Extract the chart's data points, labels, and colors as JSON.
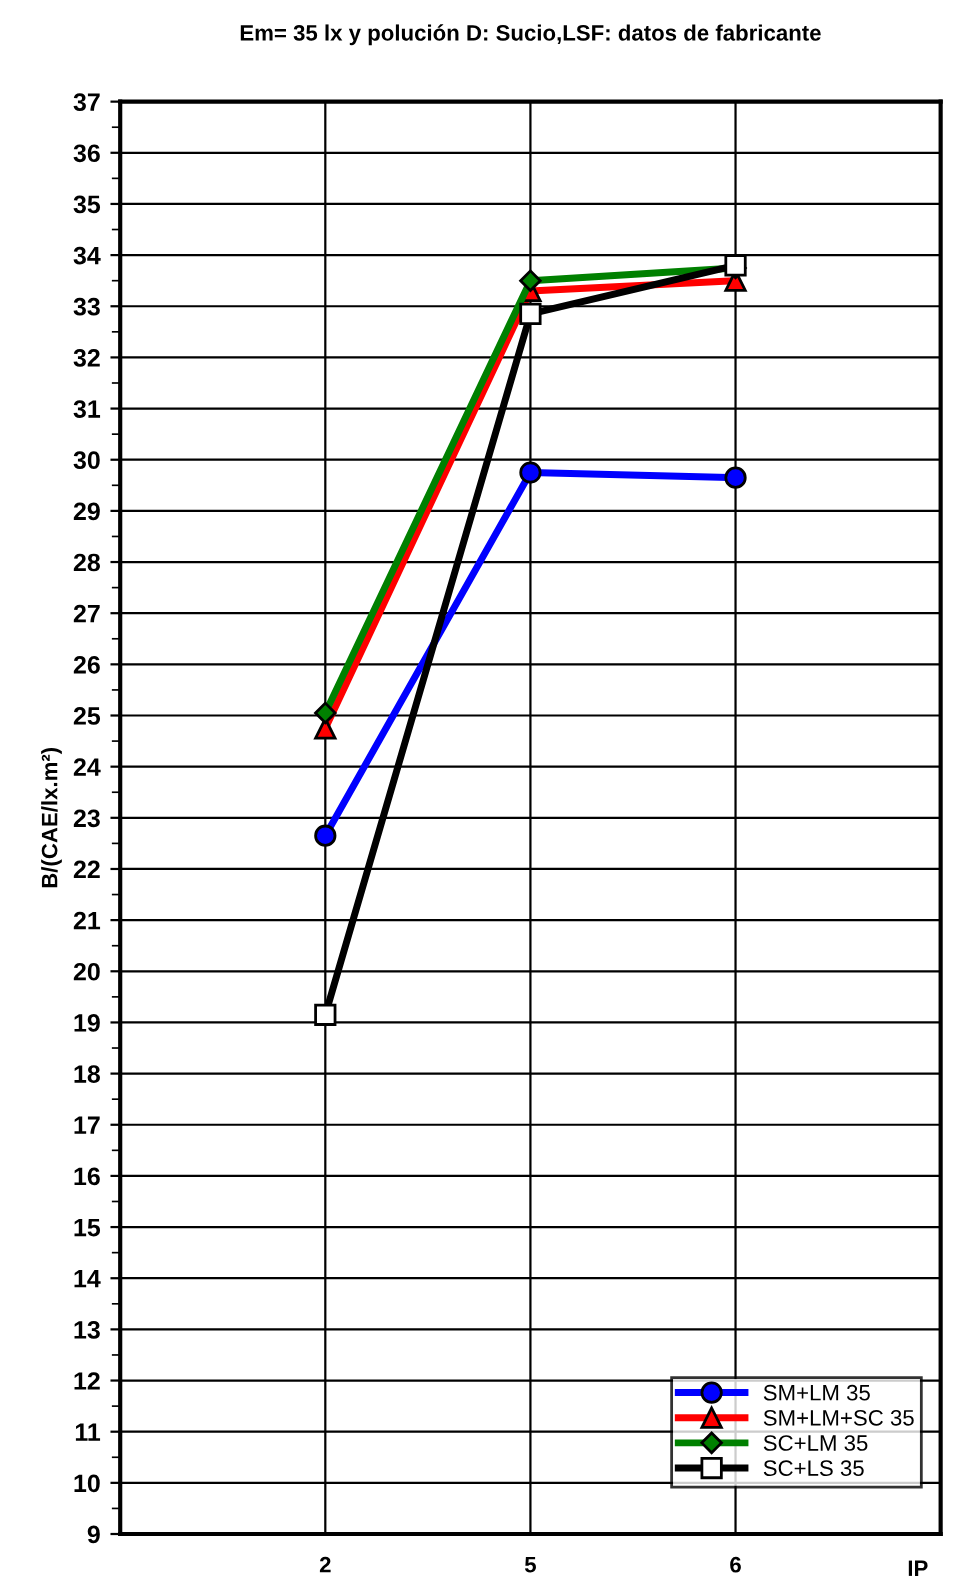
{
  "chart_data": {
    "type": "line",
    "title": "Em= 35 lx y polución D: Sucio,LSF: datos de fabricante",
    "xlabel": "IP",
    "ylabel": "B/(CAE/lx.m²)",
    "categories": [
      "2",
      "5",
      "6"
    ],
    "series": [
      {
        "name": "SM+LM 35",
        "color": "#0000ff",
        "marker": "circle",
        "values": [
          22.65,
          29.75,
          29.65
        ]
      },
      {
        "name": "SM+LM+SC 35",
        "color": "#ff0000",
        "marker": "triangle",
        "values": [
          24.75,
          33.3,
          33.5
        ]
      },
      {
        "name": "SC+LM 35",
        "color": "#008000",
        "marker": "diamond",
        "values": [
          25.05,
          33.5,
          33.75
        ]
      },
      {
        "name": "SC+LS 35",
        "color": "#000000",
        "marker": "square",
        "values": [
          19.15,
          32.85,
          33.8
        ]
      }
    ],
    "ylim": [
      9,
      37
    ],
    "yticks": [
      9,
      10,
      11,
      12,
      13,
      14,
      15,
      16,
      17,
      18,
      19,
      20,
      21,
      22,
      23,
      24,
      25,
      26,
      27,
      28,
      29,
      30,
      31,
      32,
      33,
      34,
      35,
      36,
      37
    ],
    "grid": true,
    "legend": "bottom right",
    "line_style": "solid"
  }
}
